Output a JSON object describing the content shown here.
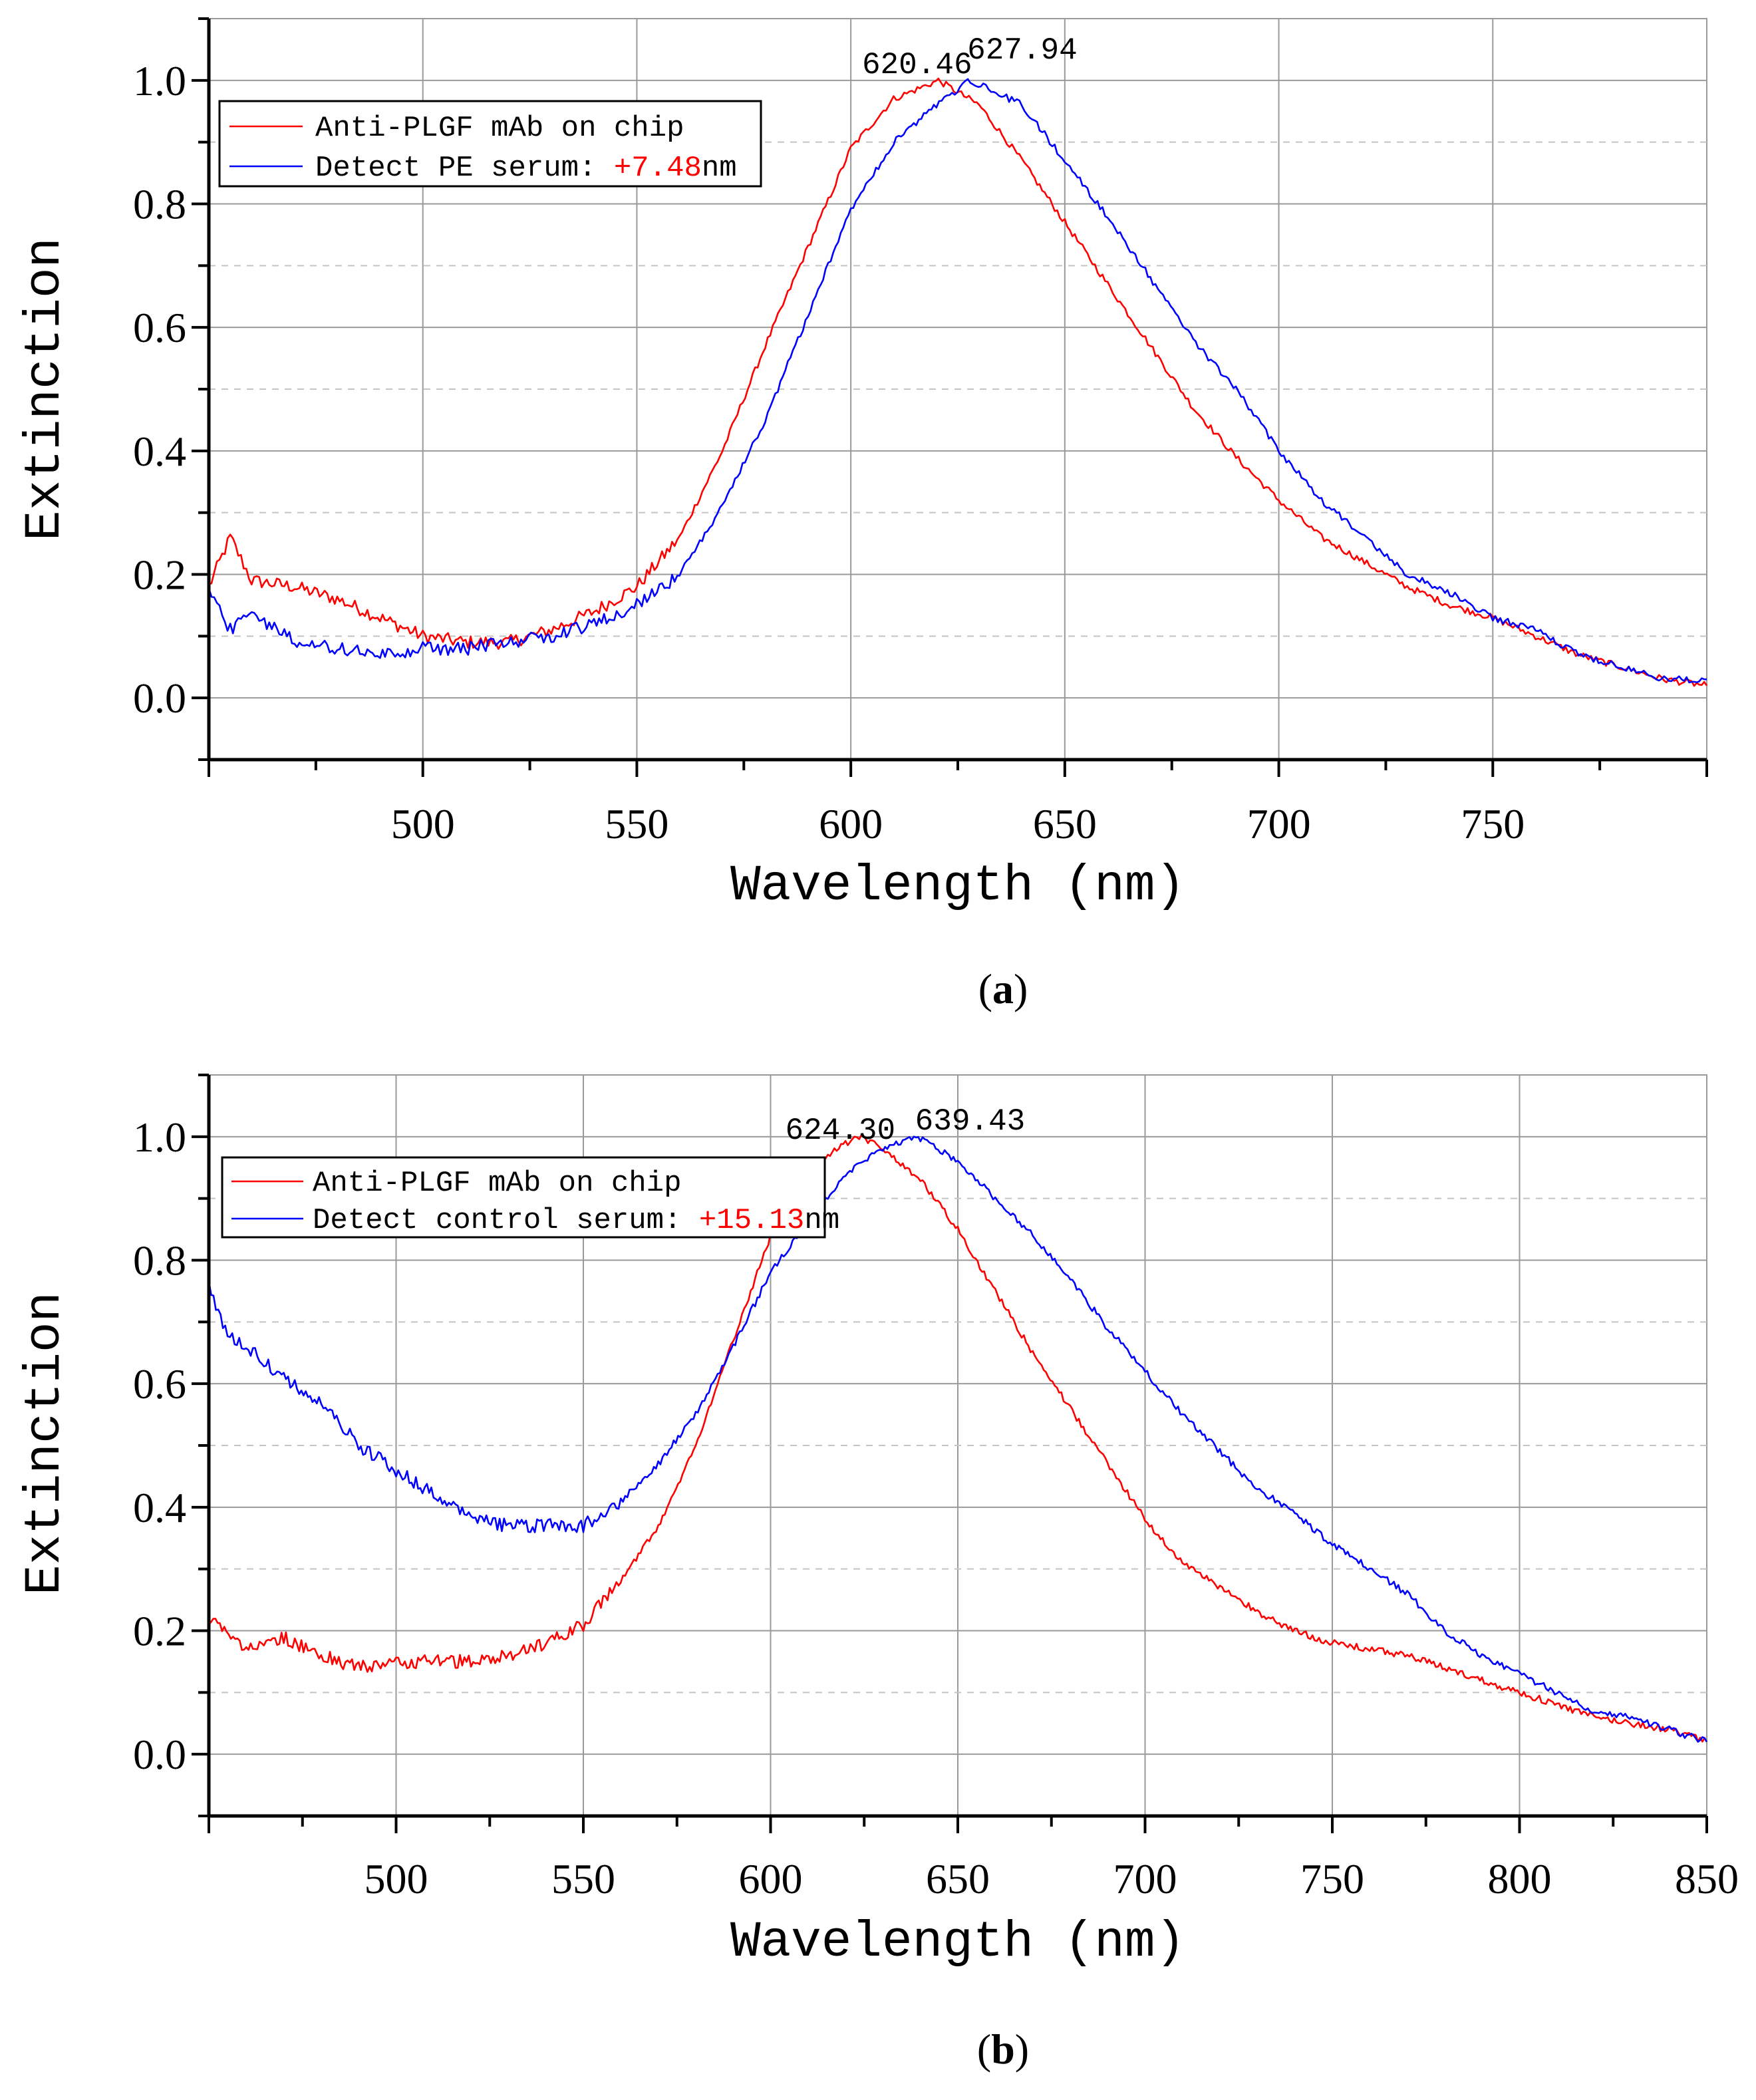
{
  "chart_data": [
    {
      "panel": "(a)",
      "panel_letter": "a",
      "type": "line",
      "xlabel": "Wavelength (nm)",
      "ylabel": "Extinction",
      "xlim": [
        450,
        800
      ],
      "ylim": [
        -0.1,
        1.1
      ],
      "x_ticks": [
        500,
        550,
        600,
        650,
        700,
        750
      ],
      "y_ticks": [
        0.0,
        0.2,
        0.4,
        0.6,
        0.8,
        1.0
      ],
      "y_tick_labels": [
        "0.0",
        "0.2",
        "0.4",
        "0.6",
        "0.8",
        "1.0"
      ],
      "grid": true,
      "legend_placement": "top-left",
      "series": [
        {
          "name": "Anti-PLGF mAb on chip",
          "color": "#ff0000",
          "x": [
            450,
            455,
            460,
            470,
            480,
            490,
            500,
            510,
            520,
            530,
            540,
            550,
            560,
            570,
            580,
            590,
            600,
            610,
            620.46,
            630,
            640,
            650,
            660,
            670,
            680,
            690,
            700,
            710,
            720,
            730,
            740,
            750,
            760,
            770,
            780,
            790,
            800
          ],
          "y": [
            0.18,
            0.26,
            0.19,
            0.18,
            0.16,
            0.13,
            0.1,
            0.09,
            0.09,
            0.11,
            0.14,
            0.18,
            0.26,
            0.4,
            0.57,
            0.73,
            0.89,
            0.97,
            1.0,
            0.96,
            0.87,
            0.77,
            0.67,
            0.57,
            0.47,
            0.39,
            0.32,
            0.26,
            0.22,
            0.18,
            0.15,
            0.13,
            0.1,
            0.07,
            0.05,
            0.03,
            0.02
          ]
        },
        {
          "name": "Detect PE serum: +7.48nm",
          "color": "#0000ff",
          "x": [
            450,
            455,
            460,
            470,
            480,
            490,
            500,
            510,
            520,
            530,
            540,
            550,
            560,
            570,
            580,
            590,
            600,
            610,
            620,
            627.94,
            640,
            650,
            660,
            670,
            680,
            690,
            700,
            710,
            720,
            730,
            740,
            750,
            760,
            770,
            780,
            790,
            800
          ],
          "y": [
            0.18,
            0.11,
            0.14,
            0.09,
            0.08,
            0.07,
            0.08,
            0.08,
            0.09,
            0.1,
            0.12,
            0.15,
            0.2,
            0.31,
            0.45,
            0.62,
            0.79,
            0.9,
            0.96,
            1.0,
            0.96,
            0.87,
            0.78,
            0.68,
            0.58,
            0.5,
            0.4,
            0.32,
            0.26,
            0.2,
            0.17,
            0.13,
            0.11,
            0.07,
            0.05,
            0.03,
            0.03
          ]
        }
      ],
      "legend": {
        "line1": "Anti-PLGF mAb on chip",
        "line2_prefix": "Detect PE serum: ",
        "line2_shift": "+7.48",
        "line2_suffix": "nm"
      },
      "annotations": [
        {
          "text": "620.46",
          "x": 620.46,
          "y": 1.0
        },
        {
          "text": "627.94",
          "x": 627.94,
          "y": 1.0
        }
      ]
    },
    {
      "panel": "(b)",
      "panel_letter": "b",
      "type": "line",
      "xlabel": "Wavelength (nm)",
      "ylabel": "Extinction",
      "xlim": [
        450,
        850
      ],
      "ylim": [
        -0.1,
        1.1
      ],
      "x_ticks": [
        500,
        550,
        600,
        650,
        700,
        750,
        800,
        850
      ],
      "y_ticks": [
        0.0,
        0.2,
        0.4,
        0.6,
        0.8,
        1.0
      ],
      "y_tick_labels": [
        "0.0",
        "0.2",
        "0.4",
        "0.6",
        "0.8",
        "1.0"
      ],
      "grid": true,
      "legend_placement": "top-left",
      "series": [
        {
          "name": "Anti-PLGF mAb on chip",
          "color": "#ff0000",
          "x": [
            450,
            460,
            470,
            480,
            490,
            500,
            510,
            520,
            530,
            540,
            550,
            560,
            570,
            580,
            590,
            600,
            610,
            620,
            624.3,
            630,
            640,
            650,
            660,
            670,
            680,
            690,
            700,
            710,
            720,
            730,
            740,
            750,
            760,
            770,
            780,
            790,
            800,
            810,
            820,
            830,
            840,
            850
          ],
          "y": [
            0.22,
            0.17,
            0.19,
            0.16,
            0.14,
            0.15,
            0.15,
            0.15,
            0.16,
            0.18,
            0.21,
            0.28,
            0.37,
            0.5,
            0.67,
            0.84,
            0.95,
            0.99,
            1.0,
            0.98,
            0.93,
            0.85,
            0.75,
            0.65,
            0.56,
            0.47,
            0.38,
            0.31,
            0.27,
            0.23,
            0.2,
            0.18,
            0.17,
            0.16,
            0.14,
            0.12,
            0.1,
            0.08,
            0.06,
            0.05,
            0.04,
            0.02
          ]
        },
        {
          "name": "Detect control serum: +15.13nm",
          "color": "#0000ff",
          "x": [
            450,
            455,
            460,
            470,
            480,
            490,
            500,
            510,
            520,
            530,
            540,
            550,
            560,
            570,
            580,
            590,
            600,
            610,
            620,
            630,
            639.43,
            650,
            660,
            670,
            680,
            690,
            700,
            710,
            720,
            730,
            740,
            750,
            760,
            770,
            780,
            790,
            800,
            810,
            820,
            830,
            840,
            850
          ],
          "y": [
            0.76,
            0.68,
            0.66,
            0.61,
            0.57,
            0.5,
            0.46,
            0.42,
            0.38,
            0.37,
            0.37,
            0.37,
            0.41,
            0.47,
            0.55,
            0.66,
            0.78,
            0.86,
            0.94,
            0.98,
            1.0,
            0.96,
            0.9,
            0.84,
            0.77,
            0.69,
            0.62,
            0.55,
            0.49,
            0.43,
            0.39,
            0.34,
            0.3,
            0.26,
            0.2,
            0.16,
            0.13,
            0.1,
            0.07,
            0.06,
            0.04,
            0.02
          ]
        }
      ],
      "legend": {
        "line1": "Anti-PLGF mAb on chip",
        "line2_prefix": "Detect control serum: ",
        "line2_shift": "+15.13",
        "line2_suffix": "nm"
      },
      "annotations": [
        {
          "text": "624.30",
          "x": 624.3,
          "y": 1.0
        },
        {
          "text": "639.43",
          "x": 639.43,
          "y": 1.0
        }
      ]
    }
  ]
}
